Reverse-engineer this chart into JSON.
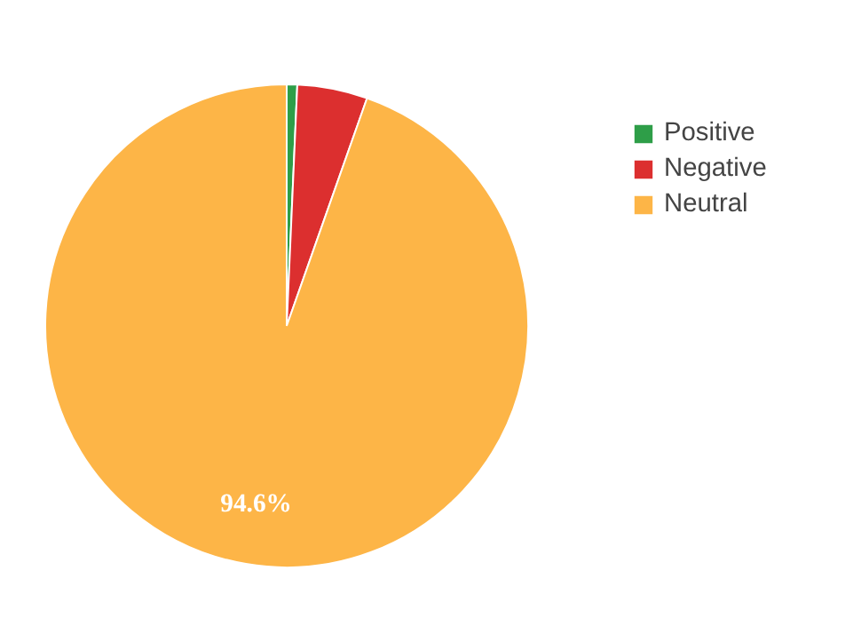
{
  "chart_data": {
    "type": "pie",
    "categories": [
      "Positive",
      "Negative",
      "Neutral"
    ],
    "values": [
      0.7,
      4.7,
      94.6
    ],
    "colors": [
      "#2e9e48",
      "#dc2f2f",
      "#fdb547"
    ],
    "value_labels": [
      null,
      null,
      "94.6%"
    ],
    "legend": "top right"
  }
}
